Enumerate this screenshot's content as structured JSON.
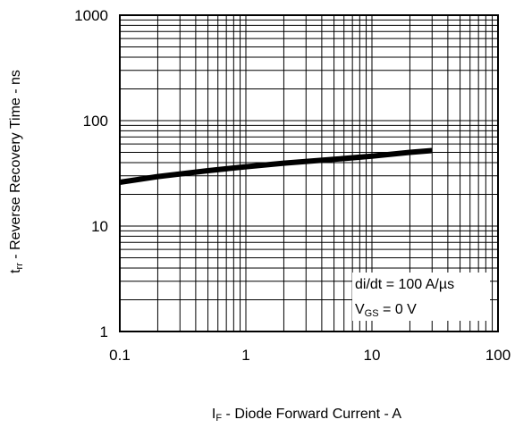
{
  "chart_data": {
    "type": "line",
    "title": "",
    "xlabel": {
      "main": "I",
      "sub": "F",
      "rest": " - Diode Forward Current - A"
    },
    "ylabel": {
      "main": "t",
      "sub": "rr",
      "rest": " - Reverse Recovery Time - ns"
    },
    "x_scale": "log",
    "y_scale": "log",
    "xlim": [
      0.1,
      100
    ],
    "ylim": [
      1,
      1000
    ],
    "x_ticks": [
      "0.1",
      "1",
      "10",
      "100"
    ],
    "y_ticks": [
      "1",
      "10",
      "100",
      "1000"
    ],
    "grid": true,
    "series": [
      {
        "x": [
          0.1,
          0.2,
          0.5,
          1,
          2,
          5,
          10,
          20,
          30
        ],
        "y": [
          26,
          29.5,
          33.5,
          36.5,
          39.5,
          43,
          46,
          50,
          52
        ],
        "color": "#000000"
      }
    ],
    "annotations": [
      {
        "text": "di/dt = 100 A/µs"
      },
      {
        "main": "V",
        "sub": "GS",
        "rest": " = 0 V"
      }
    ]
  }
}
